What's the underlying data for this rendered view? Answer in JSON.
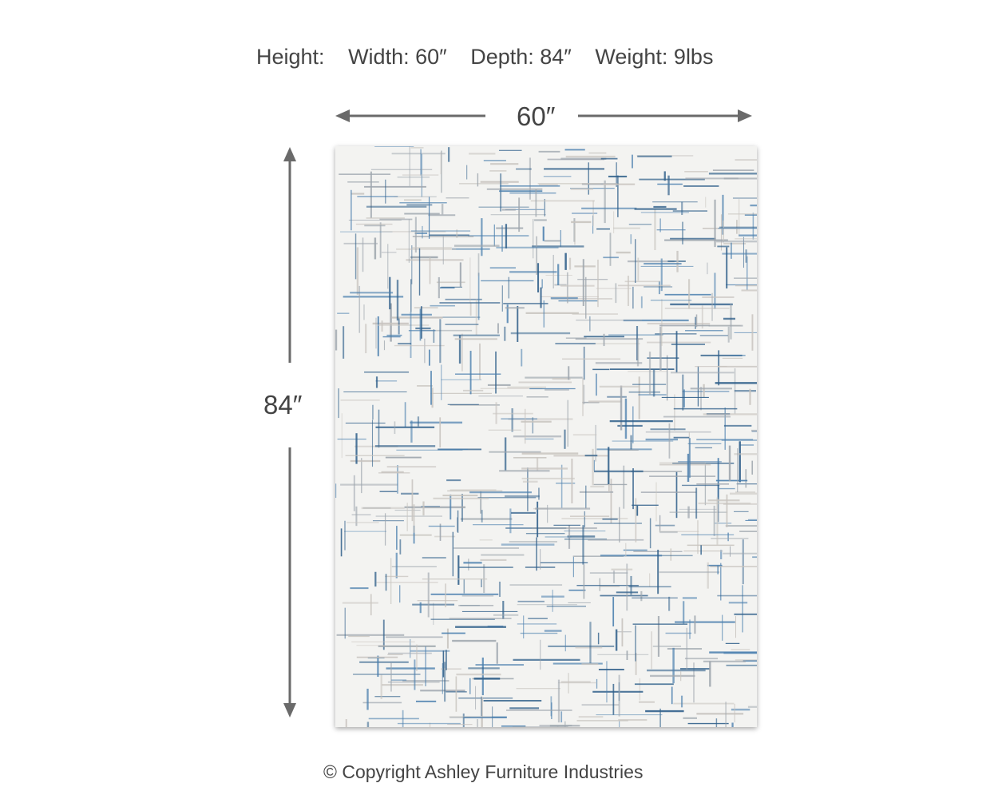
{
  "specs": {
    "height": "Height:",
    "width": "Width: 60″",
    "depth": "Depth: 84″",
    "weight": "Weight: 9lbs"
  },
  "dimensions": {
    "width_label": "60″",
    "height_label": "84″"
  },
  "product": {
    "pattern_colors": [
      "#2f5f8a",
      "#4a7fae",
      "#c8c4bf",
      "#9ea6ae"
    ],
    "background": "#f3f3f1"
  },
  "footer": {
    "copyright": "© Copyright Ashley Furniture Industries"
  },
  "colors": {
    "text": "#444444",
    "arrow": "#6a6a6a"
  }
}
